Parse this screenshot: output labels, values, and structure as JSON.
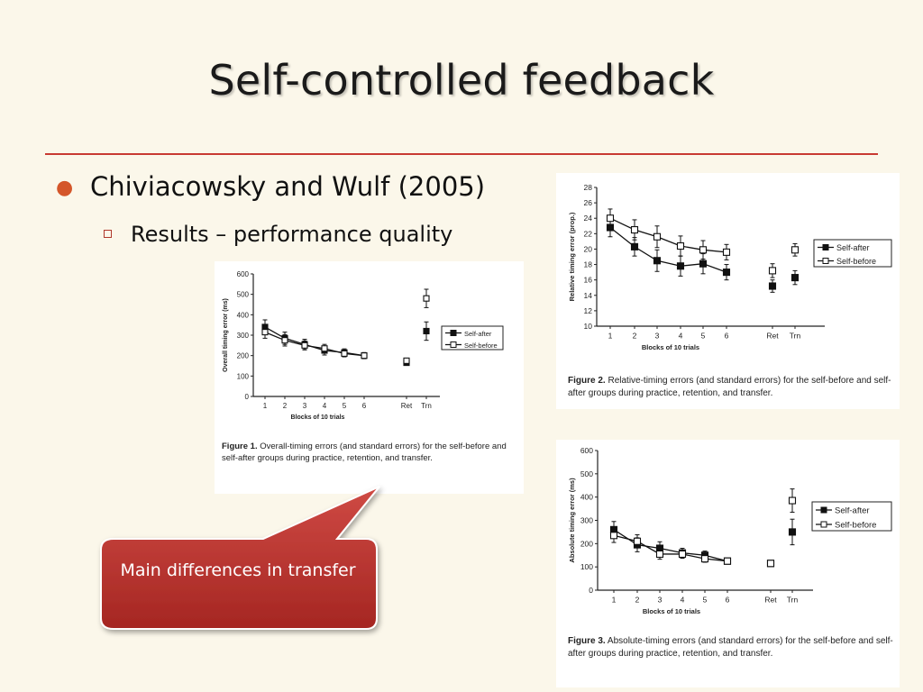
{
  "slide": {
    "title": "Self-controlled feedback",
    "bullet": "Chiviacowsky and Wulf (2005)",
    "sub_bullet": "Results – performance quality",
    "callout": "Main differences in transfer",
    "colors": {
      "rule": "#c83a32",
      "bullet": "#d4562a",
      "callout": "#b8302c"
    }
  },
  "chart_data": [
    {
      "type": "line",
      "figure_label": "Figure 1.",
      "caption": "Overall-timing errors (and standard errors) for the self-before and self-after groups during practice, retention, and transfer.",
      "ylabel": "Overall timing error (ms)",
      "xlabel": "Blocks of 10 trials",
      "categories": [
        "1",
        "2",
        "3",
        "4",
        "5",
        "6",
        "Ret",
        "Trn"
      ],
      "ylim": [
        0,
        600
      ],
      "yticks": [
        0,
        100,
        200,
        300,
        400,
        500,
        600
      ],
      "legend": [
        "Self-after",
        "Self-before"
      ],
      "series": [
        {
          "name": "Self-after",
          "marker": "filled-square",
          "values": [
            340,
            285,
            255,
            225,
            215,
            200,
            165,
            320
          ],
          "errors": [
            35,
            30,
            25,
            22,
            18,
            15,
            12,
            45
          ]
        },
        {
          "name": "Self-before",
          "marker": "open-square",
          "values": [
            315,
            275,
            250,
            235,
            210,
            200,
            175,
            480
          ],
          "errors": [
            30,
            28,
            22,
            20,
            16,
            14,
            12,
            45
          ]
        }
      ]
    },
    {
      "type": "line",
      "figure_label": "Figure 2.",
      "caption": "Relative-timing errors (and standard errors) for the self-before and self-after groups during practice, retention, and transfer.",
      "ylabel": "Relative timing error (prop.)",
      "xlabel": "Blocks of 10 trials",
      "categories": [
        "1",
        "2",
        "3",
        "4",
        "5",
        "6",
        "Ret",
        "Trn"
      ],
      "ylim": [
        10,
        28
      ],
      "yticks": [
        10,
        12,
        14,
        16,
        18,
        20,
        22,
        24,
        26,
        28
      ],
      "legend": [
        "Self-after",
        "Self-before"
      ],
      "series": [
        {
          "name": "Self-after",
          "marker": "filled-square",
          "values": [
            22.8,
            20.3,
            18.5,
            17.8,
            18.1,
            17.0,
            15.2,
            16.3
          ],
          "errors": [
            1.2,
            1.2,
            1.4,
            1.3,
            1.3,
            1.0,
            0.8,
            0.9
          ]
        },
        {
          "name": "Self-before",
          "marker": "open-square",
          "values": [
            24.0,
            22.5,
            21.6,
            20.4,
            19.9,
            19.6,
            17.2,
            19.9
          ],
          "errors": [
            1.2,
            1.3,
            1.4,
            1.3,
            1.2,
            1.0,
            0.9,
            0.8
          ]
        }
      ]
    },
    {
      "type": "line",
      "figure_label": "Figure 3.",
      "caption": "Absolute-timing errors (and standard errors) for the self-before and self-after groups during practice, retention, and transfer.",
      "ylabel": "Absolute timing error (ms)",
      "xlabel": "Blocks of 10 trials",
      "categories": [
        "1",
        "2",
        "3",
        "4",
        "5",
        "6",
        "Ret",
        "Trn"
      ],
      "ylim": [
        0,
        600
      ],
      "yticks": [
        0,
        100,
        200,
        300,
        400,
        500,
        600
      ],
      "legend": [
        "Self-after",
        "Self-before"
      ],
      "series": [
        {
          "name": "Self-after",
          "marker": "filled-square",
          "values": [
            260,
            195,
            180,
            160,
            150,
            125,
            115,
            250
          ],
          "errors": [
            35,
            30,
            28,
            20,
            18,
            12,
            10,
            55
          ]
        },
        {
          "name": "Self-before",
          "marker": "open-square",
          "values": [
            235,
            210,
            155,
            155,
            135,
            125,
            115,
            385
          ],
          "errors": [
            30,
            28,
            22,
            18,
            15,
            12,
            10,
            50
          ]
        }
      ]
    }
  ]
}
